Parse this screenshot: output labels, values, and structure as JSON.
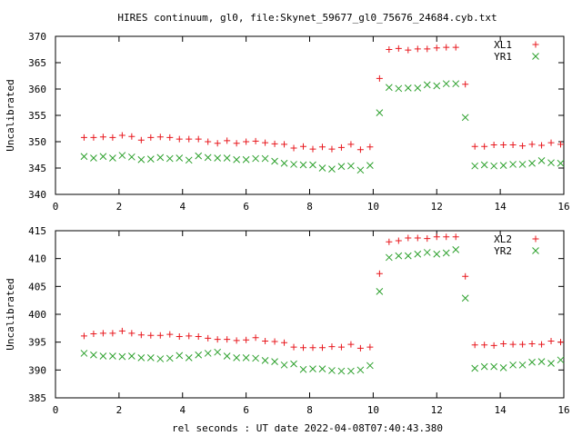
{
  "figure": {
    "title": "HIRES continuum, gl0, file:Skynet_59677_gl0_75676_24684.cyb.txt",
    "xlabel": "rel seconds : UT date 2022-04-08T07:40:43.380"
  },
  "chart_data": [
    {
      "type": "scatter",
      "ylabel": "Uncalibrated",
      "xlim": [
        0,
        16
      ],
      "ylim": [
        340,
        370
      ],
      "xticks": [
        0,
        2,
        4,
        6,
        8,
        10,
        12,
        14,
        16
      ],
      "yticks": [
        340,
        345,
        350,
        355,
        360,
        365,
        370
      ],
      "legend_position": "top-right",
      "series": [
        {
          "name": "XL1",
          "marker": "plus",
          "color": "#e8181e",
          "x": [
            0.9,
            1.2,
            1.5,
            1.8,
            2.1,
            2.4,
            2.7,
            3.0,
            3.3,
            3.6,
            3.9,
            4.2,
            4.5,
            4.8,
            5.1,
            5.4,
            5.7,
            6.0,
            6.3,
            6.6,
            6.9,
            7.2,
            7.5,
            7.8,
            8.1,
            8.4,
            8.7,
            9.0,
            9.3,
            9.6,
            9.9,
            10.2,
            10.5,
            10.8,
            11.1,
            11.4,
            11.7,
            12.0,
            12.3,
            12.6,
            12.9,
            13.2,
            13.5,
            13.8,
            14.1,
            14.4,
            14.7,
            15.0,
            15.3,
            15.6,
            15.9
          ],
          "y": [
            350.8,
            350.8,
            350.9,
            350.8,
            351.2,
            351.0,
            350.3,
            350.8,
            350.9,
            350.8,
            350.5,
            350.5,
            350.5,
            350.0,
            349.7,
            350.2,
            349.7,
            350.0,
            350.1,
            349.8,
            349.6,
            349.5,
            348.8,
            349.1,
            348.6,
            349.0,
            348.6,
            348.9,
            349.5,
            348.5,
            349.0,
            362.0,
            367.5,
            367.7,
            367.4,
            367.6,
            367.6,
            367.8,
            367.9,
            367.9,
            360.9,
            349.1,
            349.1,
            349.4,
            349.4,
            349.4,
            349.2,
            349.5,
            349.3,
            349.8,
            349.5
          ]
        },
        {
          "name": "YR1",
          "marker": "cross",
          "color": "#2ca02c",
          "x": [
            0.9,
            1.2,
            1.5,
            1.8,
            2.1,
            2.4,
            2.7,
            3.0,
            3.3,
            3.6,
            3.9,
            4.2,
            4.5,
            4.8,
            5.1,
            5.4,
            5.7,
            6.0,
            6.3,
            6.6,
            6.9,
            7.2,
            7.5,
            7.8,
            8.1,
            8.4,
            8.7,
            9.0,
            9.3,
            9.6,
            9.9,
            10.2,
            10.5,
            10.8,
            11.1,
            11.4,
            11.7,
            12.0,
            12.3,
            12.6,
            12.9,
            13.2,
            13.5,
            13.8,
            14.1,
            14.4,
            14.7,
            15.0,
            15.3,
            15.6,
            15.9
          ],
          "y": [
            347.2,
            346.9,
            347.2,
            346.9,
            347.4,
            347.1,
            346.6,
            346.7,
            347.0,
            346.8,
            346.9,
            346.5,
            347.3,
            347.0,
            346.9,
            346.9,
            346.6,
            346.6,
            346.8,
            346.8,
            346.3,
            345.9,
            345.7,
            345.6,
            345.6,
            345.0,
            344.8,
            345.3,
            345.4,
            344.6,
            345.5,
            355.5,
            360.3,
            360.1,
            360.2,
            360.2,
            360.8,
            360.6,
            361.0,
            361.0,
            354.6,
            345.4,
            345.6,
            345.4,
            345.5,
            345.7,
            345.7,
            345.9,
            346.4,
            346.0,
            345.9
          ]
        }
      ]
    },
    {
      "type": "scatter",
      "ylabel": "Uncalibrated",
      "xlim": [
        0,
        16
      ],
      "ylim": [
        385,
        415
      ],
      "xticks": [
        0,
        2,
        4,
        6,
        8,
        10,
        12,
        14,
        16
      ],
      "yticks": [
        385,
        390,
        395,
        400,
        405,
        410,
        415
      ],
      "legend_position": "top-right",
      "series": [
        {
          "name": "XL2",
          "marker": "plus",
          "color": "#e8181e",
          "x": [
            0.9,
            1.2,
            1.5,
            1.8,
            2.1,
            2.4,
            2.7,
            3.0,
            3.3,
            3.6,
            3.9,
            4.2,
            4.5,
            4.8,
            5.1,
            5.4,
            5.7,
            6.0,
            6.3,
            6.6,
            6.9,
            7.2,
            7.5,
            7.8,
            8.1,
            8.4,
            8.7,
            9.0,
            9.3,
            9.6,
            9.9,
            10.2,
            10.5,
            10.8,
            11.1,
            11.4,
            11.7,
            12.0,
            12.3,
            12.6,
            12.9,
            13.2,
            13.5,
            13.8,
            14.1,
            14.4,
            14.7,
            15.0,
            15.3,
            15.6,
            15.9
          ],
          "y": [
            396.1,
            396.5,
            396.6,
            396.6,
            397.0,
            396.6,
            396.3,
            396.2,
            396.2,
            396.4,
            396.0,
            396.1,
            396.0,
            395.7,
            395.5,
            395.5,
            395.3,
            395.4,
            395.8,
            395.2,
            395.1,
            394.9,
            394.1,
            394.0,
            394.0,
            394.0,
            394.2,
            394.1,
            394.6,
            393.9,
            394.1,
            407.3,
            413.0,
            413.2,
            413.7,
            413.7,
            413.6,
            413.9,
            413.9,
            413.9,
            406.8,
            394.5,
            394.5,
            394.4,
            394.7,
            394.6,
            394.6,
            394.7,
            394.6,
            395.2,
            395.0
          ]
        },
        {
          "name": "YR2",
          "marker": "cross",
          "color": "#2ca02c",
          "x": [
            0.9,
            1.2,
            1.5,
            1.8,
            2.1,
            2.4,
            2.7,
            3.0,
            3.3,
            3.6,
            3.9,
            4.2,
            4.5,
            4.8,
            5.1,
            5.4,
            5.7,
            6.0,
            6.3,
            6.6,
            6.9,
            7.2,
            7.5,
            7.8,
            8.1,
            8.4,
            8.7,
            9.0,
            9.3,
            9.6,
            9.9,
            10.2,
            10.5,
            10.8,
            11.1,
            11.4,
            11.7,
            12.0,
            12.3,
            12.6,
            12.9,
            13.2,
            13.5,
            13.8,
            14.1,
            14.4,
            14.7,
            15.0,
            15.3,
            15.6,
            15.9
          ],
          "y": [
            393.0,
            392.7,
            392.5,
            392.5,
            392.4,
            392.5,
            392.2,
            392.2,
            392.0,
            392.1,
            392.6,
            392.2,
            392.7,
            393.0,
            393.2,
            392.5,
            392.2,
            392.2,
            392.1,
            391.7,
            391.5,
            390.9,
            391.1,
            390.1,
            390.2,
            390.2,
            389.9,
            389.8,
            389.8,
            390.0,
            390.8,
            404.1,
            410.2,
            410.5,
            410.5,
            410.8,
            411.1,
            410.8,
            411.0,
            411.6,
            402.9,
            390.3,
            390.6,
            390.6,
            390.4,
            390.9,
            390.9,
            391.4,
            391.5,
            391.2,
            391.8
          ]
        }
      ]
    }
  ]
}
